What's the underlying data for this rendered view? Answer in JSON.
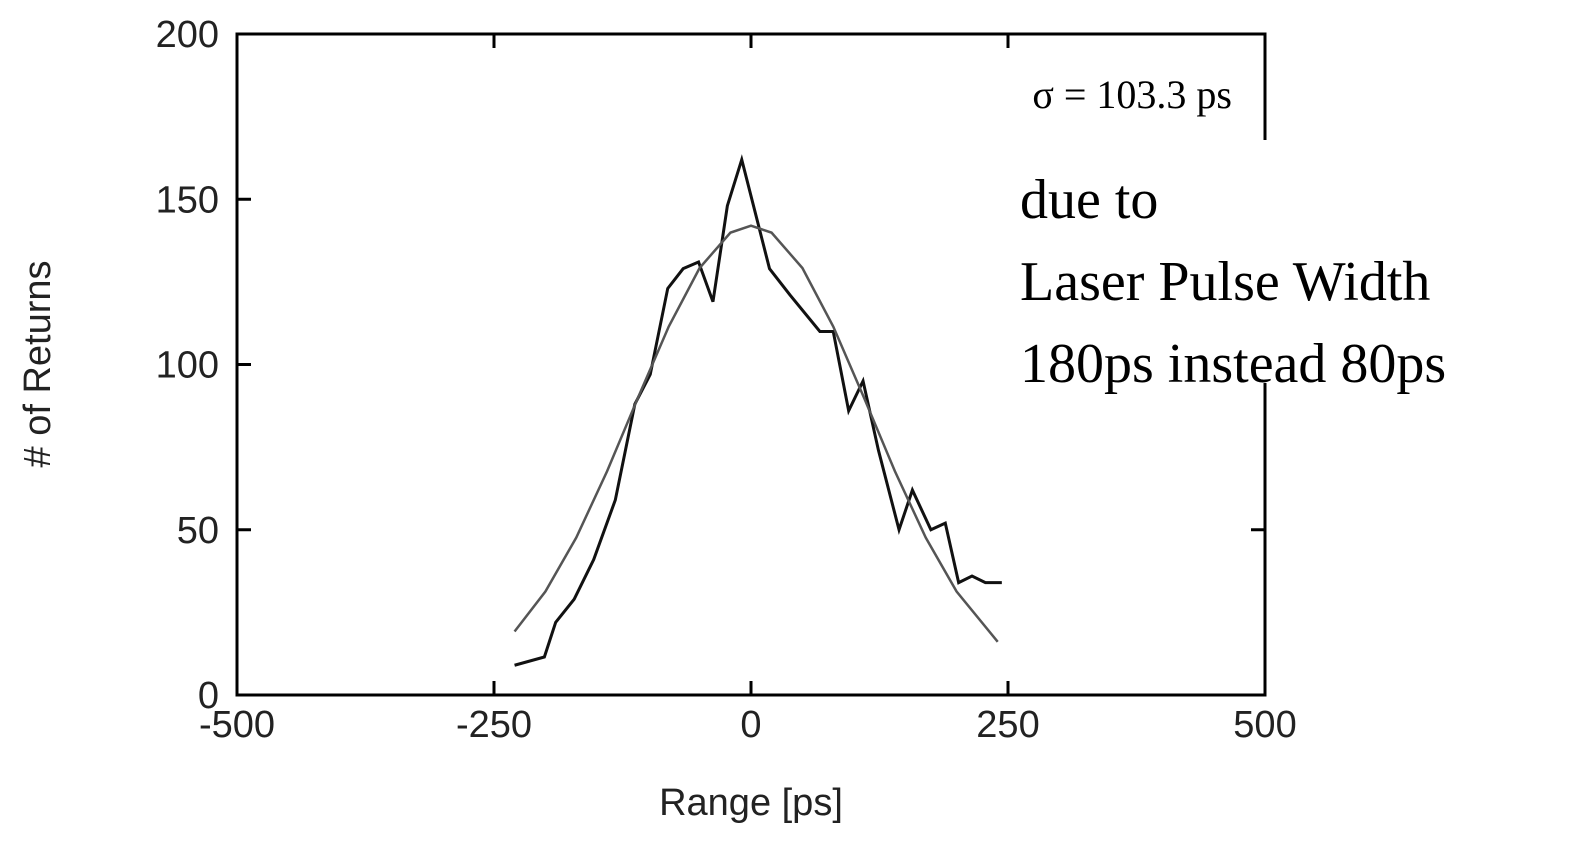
{
  "chart_data": {
    "type": "line",
    "xlabel": "Range [ps]",
    "ylabel": "# of Returns",
    "xlim": [
      -500,
      500
    ],
    "xticks": [
      -500,
      -250,
      0,
      250,
      500
    ],
    "ylim": [
      0,
      200
    ],
    "yticks": [
      0,
      50,
      100,
      150,
      200
    ],
    "annotations": [
      "σ = 103.3 ps",
      "due to",
      "Laser Pulse Width",
      "180ps instead 80ps"
    ],
    "series": [
      {
        "color": "#111111",
        "x": [
          -230,
          -201,
          -190,
          -172,
          -153,
          -132,
          -113,
          -98,
          -81,
          -66,
          -51,
          -37,
          -23,
          -9,
          18,
          38,
          67,
          80,
          95,
          109,
          124,
          144,
          157,
          175,
          189,
          202,
          215,
          228,
          244
        ],
        "values": [
          9,
          11.5,
          22,
          29,
          41,
          59,
          88,
          97,
          123,
          129,
          131,
          119,
          148,
          162,
          129,
          121,
          110,
          110,
          86,
          95,
          74,
          50,
          62,
          50,
          52,
          34,
          36,
          34,
          34
        ]
      },
      {
        "color": "#555555",
        "x": [
          -230,
          -200,
          -170,
          -140,
          -110,
          -80,
          -50,
          -20,
          0,
          20,
          50,
          80,
          110,
          140,
          170,
          200,
          240
        ],
        "values": [
          19.2,
          31.3,
          47.6,
          67.7,
          89.9,
          111.5,
          129.2,
          139.9,
          142,
          139.9,
          129.2,
          111.5,
          89.9,
          67.7,
          47.6,
          31.3,
          16.1
        ]
      }
    ]
  }
}
